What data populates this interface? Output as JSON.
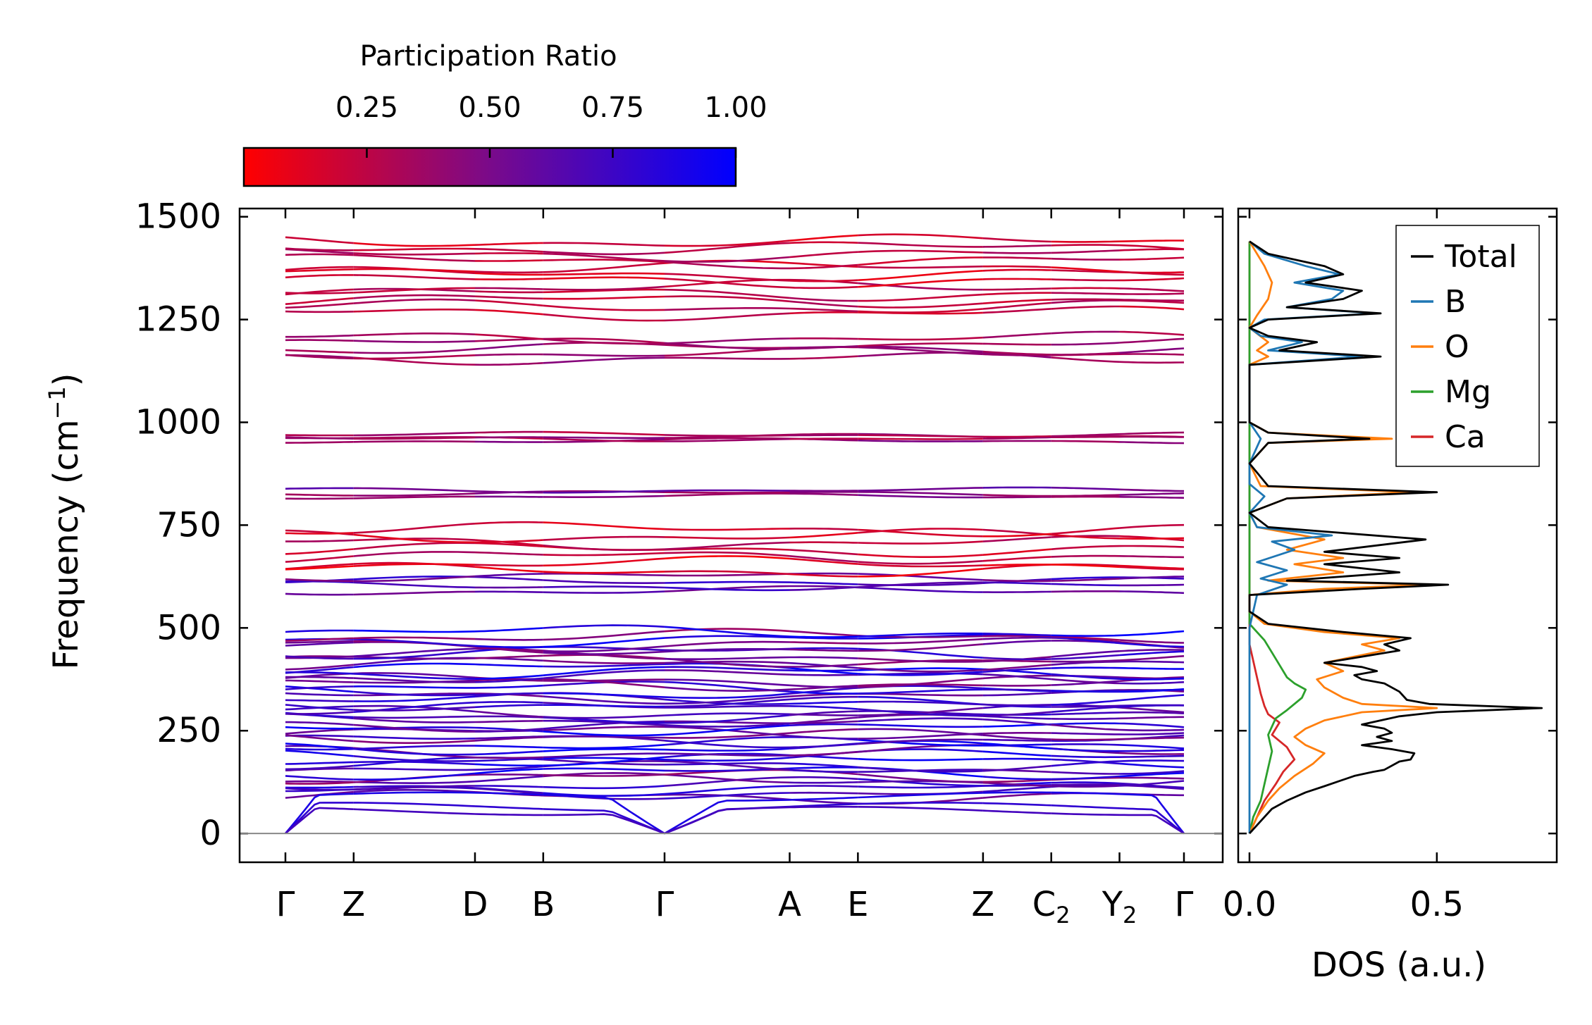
{
  "chart_data": [
    {
      "name": "phonon-band-structure",
      "type": "line",
      "ylabel": "Frequency (cm",
      "ylabel_sup": "−1",
      "ylabel_close": ")",
      "ylim": [
        -70,
        1520
      ],
      "yticks": [
        0,
        250,
        500,
        750,
        1000,
        1250,
        1500
      ],
      "ytick_labels": [
        "0",
        "250",
        "500",
        "750",
        "1000",
        "1250",
        "1500"
      ],
      "kpath": [
        {
          "label": "Γ",
          "sub": "",
          "x": 0.0
        },
        {
          "label": "Z",
          "sub": "",
          "x": 0.18
        },
        {
          "label": "D",
          "sub": "",
          "x": 0.5
        },
        {
          "label": "B",
          "sub": "",
          "x": 0.68
        },
        {
          "label": "Γ",
          "sub": "",
          "x": 1.0
        },
        {
          "label": "A",
          "sub": "",
          "x": 1.33
        },
        {
          "label": "E",
          "sub": "",
          "x": 1.51
        },
        {
          "label": "Z",
          "sub": "",
          "x": 1.84
        },
        {
          "label": "C",
          "sub": "2",
          "x": 2.02
        },
        {
          "label": "Y",
          "sub": "2",
          "x": 2.2
        },
        {
          "label": "Γ",
          "sub": "",
          "x": 2.37
        }
      ],
      "band_groups": [
        {
          "fmin": 90,
          "fmax": 490,
          "count": 42,
          "pr_low": 0.45,
          "pr_high": 0.95
        },
        {
          "fmin": 590,
          "fmax": 625,
          "count": 4,
          "pr_low": 0.55,
          "pr_high": 0.85
        },
        {
          "fmin": 640,
          "fmax": 740,
          "count": 7,
          "pr_low": 0.1,
          "pr_high": 0.3
        },
        {
          "fmin": 820,
          "fmax": 835,
          "count": 3,
          "pr_low": 0.4,
          "pr_high": 0.6
        },
        {
          "fmin": 955,
          "fmax": 970,
          "count": 4,
          "pr_low": 0.3,
          "pr_high": 0.45
        },
        {
          "fmin": 1155,
          "fmax": 1205,
          "count": 5,
          "pr_low": 0.3,
          "pr_high": 0.45
        },
        {
          "fmin": 1265,
          "fmax": 1440,
          "count": 12,
          "pr_low": 0.15,
          "pr_high": 0.3
        }
      ],
      "acoustic_top": [
        90,
        65,
        55
      ]
    },
    {
      "name": "colorbar",
      "type": "heatmap",
      "title": "Participation Ratio",
      "range": [
        0.0,
        1.0
      ],
      "ticks": [
        0.25,
        0.5,
        0.75,
        1.0
      ],
      "tick_labels": [
        "0.25",
        "0.50",
        "0.75",
        "1.00"
      ],
      "color_low": "#ff0000",
      "color_high": "#0000ff"
    },
    {
      "name": "dos",
      "type": "line",
      "xlabel": "DOS (a.u.)",
      "xlim": [
        -0.03,
        0.82
      ],
      "xticks": [
        0.0,
        0.5
      ],
      "xtick_labels": [
        "0.0",
        "0.5"
      ],
      "ylim": [
        -70,
        1520
      ],
      "legend_position": "top-right",
      "series": [
        {
          "name": "Total",
          "color": "#000000",
          "points": [
            [
              0,
              0
            ],
            [
              0.03,
              30
            ],
            [
              0.06,
              60
            ],
            [
              0.1,
              80
            ],
            [
              0.15,
              100
            ],
            [
              0.2,
              115
            ],
            [
              0.28,
              140
            ],
            [
              0.33,
              150
            ],
            [
              0.36,
              155
            ],
            [
              0.4,
              175
            ],
            [
              0.43,
              180
            ],
            [
              0.44,
              195
            ],
            [
              0.38,
              205
            ],
            [
              0.3,
              215
            ],
            [
              0.38,
              225
            ],
            [
              0.34,
              235
            ],
            [
              0.38,
              245
            ],
            [
              0.36,
              255
            ],
            [
              0.3,
              265
            ],
            [
              0.35,
              275
            ],
            [
              0.4,
              285
            ],
            [
              0.5,
              295
            ],
            [
              0.78,
              305
            ],
            [
              0.48,
              315
            ],
            [
              0.42,
              325
            ],
            [
              0.4,
              345
            ],
            [
              0.36,
              365
            ],
            [
              0.3,
              375
            ],
            [
              0.28,
              385
            ],
            [
              0.34,
              395
            ],
            [
              0.3,
              405
            ],
            [
              0.2,
              415
            ],
            [
              0.4,
              445
            ],
            [
              0.36,
              460
            ],
            [
              0.43,
              475
            ],
            [
              0.25,
              490
            ],
            [
              0.05,
              510
            ],
            [
              0,
              540
            ],
            [
              0,
              580
            ],
            [
              0.3,
              595
            ],
            [
              0.53,
              605
            ],
            [
              0.1,
              615
            ],
            [
              0.4,
              635
            ],
            [
              0.2,
              655
            ],
            [
              0.4,
              670
            ],
            [
              0.2,
              685
            ],
            [
              0.47,
              715
            ],
            [
              0.05,
              745
            ],
            [
              0,
              780
            ],
            [
              0.1,
              815
            ],
            [
              0.5,
              830
            ],
            [
              0.05,
              845
            ],
            [
              0,
              900
            ],
            [
              0.05,
              950
            ],
            [
              0.32,
              960
            ],
            [
              0.05,
              975
            ],
            [
              0,
              1000
            ],
            [
              0,
              1140
            ],
            [
              0.35,
              1160
            ],
            [
              0.08,
              1175
            ],
            [
              0.18,
              1195
            ],
            [
              0.05,
              1210
            ],
            [
              0,
              1230
            ],
            [
              0.05,
              1250
            ],
            [
              0.35,
              1265
            ],
            [
              0.1,
              1280
            ],
            [
              0.25,
              1300
            ],
            [
              0.3,
              1320
            ],
            [
              0.15,
              1340
            ],
            [
              0.25,
              1360
            ],
            [
              0.2,
              1380
            ],
            [
              0.05,
              1410
            ],
            [
              0,
              1440
            ]
          ]
        },
        {
          "name": "B",
          "color": "#1f77b4",
          "points": [
            [
              0,
              0
            ],
            [
              0,
              500
            ],
            [
              0.02,
              580
            ],
            [
              0.1,
              605
            ],
            [
              0.03,
              620
            ],
            [
              0.1,
              640
            ],
            [
              0.02,
              660
            ],
            [
              0.12,
              690
            ],
            [
              0.06,
              710
            ],
            [
              0.22,
              725
            ],
            [
              0.02,
              745
            ],
            [
              0,
              780
            ],
            [
              0.04,
              820
            ],
            [
              0,
              850
            ],
            [
              0,
              900
            ],
            [
              0.03,
              960
            ],
            [
              0,
              1000
            ],
            [
              0,
              1140
            ],
            [
              0.3,
              1160
            ],
            [
              0.05,
              1175
            ],
            [
              0.14,
              1195
            ],
            [
              0.03,
              1210
            ],
            [
              0,
              1230
            ],
            [
              0.04,
              1250
            ],
            [
              0.34,
              1265
            ],
            [
              0.1,
              1280
            ],
            [
              0.22,
              1300
            ],
            [
              0.25,
              1320
            ],
            [
              0.12,
              1340
            ],
            [
              0.24,
              1360
            ],
            [
              0.15,
              1380
            ],
            [
              0.04,
              1410
            ],
            [
              0,
              1440
            ]
          ]
        },
        {
          "name": "O",
          "color": "#ff7f0e",
          "points": [
            [
              0,
              0
            ],
            [
              0.02,
              40
            ],
            [
              0.05,
              80
            ],
            [
              0.08,
              110
            ],
            [
              0.12,
              140
            ],
            [
              0.17,
              170
            ],
            [
              0.2,
              195
            ],
            [
              0.15,
              215
            ],
            [
              0.12,
              235
            ],
            [
              0.15,
              255
            ],
            [
              0.2,
              275
            ],
            [
              0.3,
              295
            ],
            [
              0.5,
              305
            ],
            [
              0.3,
              315
            ],
            [
              0.25,
              330
            ],
            [
              0.2,
              355
            ],
            [
              0.18,
              375
            ],
            [
              0.25,
              395
            ],
            [
              0.2,
              415
            ],
            [
              0.36,
              445
            ],
            [
              0.3,
              460
            ],
            [
              0.4,
              475
            ],
            [
              0.2,
              490
            ],
            [
              0.04,
              510
            ],
            [
              0,
              540
            ],
            [
              0,
              580
            ],
            [
              0.2,
              595
            ],
            [
              0.48,
              605
            ],
            [
              0.05,
              615
            ],
            [
              0.25,
              635
            ],
            [
              0.12,
              655
            ],
            [
              0.25,
              670
            ],
            [
              0.1,
              690
            ],
            [
              0.2,
              715
            ],
            [
              0.02,
              745
            ],
            [
              0,
              780
            ],
            [
              0.1,
              815
            ],
            [
              0.44,
              830
            ],
            [
              0.03,
              845
            ],
            [
              0,
              900
            ],
            [
              0.05,
              950
            ],
            [
              0.38,
              960
            ],
            [
              0.05,
              975
            ],
            [
              0,
              1000
            ],
            [
              0,
              1140
            ],
            [
              0.05,
              1160
            ],
            [
              0.02,
              1175
            ],
            [
              0.05,
              1195
            ],
            [
              0,
              1230
            ],
            [
              0.02,
              1260
            ],
            [
              0.05,
              1300
            ],
            [
              0.06,
              1340
            ],
            [
              0.04,
              1380
            ],
            [
              0,
              1440
            ]
          ]
        },
        {
          "name": "Mg",
          "color": "#2ca02c",
          "points": [
            [
              0,
              0
            ],
            [
              0.01,
              40
            ],
            [
              0.03,
              80
            ],
            [
              0.04,
              120
            ],
            [
              0.05,
              160
            ],
            [
              0.06,
              200
            ],
            [
              0.05,
              240
            ],
            [
              0.07,
              280
            ],
            [
              0.1,
              300
            ],
            [
              0.14,
              330
            ],
            [
              0.15,
              350
            ],
            [
              0.12,
              365
            ],
            [
              0.1,
              380
            ],
            [
              0.08,
              410
            ],
            [
              0.06,
              440
            ],
            [
              0.04,
              470
            ],
            [
              0.02,
              490
            ],
            [
              0,
              510
            ],
            [
              0,
              1440
            ]
          ]
        },
        {
          "name": "Ca",
          "color": "#d62728",
          "points": [
            [
              0,
              0
            ],
            [
              0.02,
              40
            ],
            [
              0.04,
              80
            ],
            [
              0.07,
              120
            ],
            [
              0.09,
              150
            ],
            [
              0.12,
              180
            ],
            [
              0.1,
              210
            ],
            [
              0.06,
              240
            ],
            [
              0.08,
              270
            ],
            [
              0.05,
              290
            ],
            [
              0.04,
              310
            ],
            [
              0.03,
              340
            ],
            [
              0.02,
              380
            ],
            [
              0.01,
              420
            ],
            [
              0,
              460
            ],
            [
              0,
              1440
            ]
          ]
        }
      ]
    }
  ]
}
